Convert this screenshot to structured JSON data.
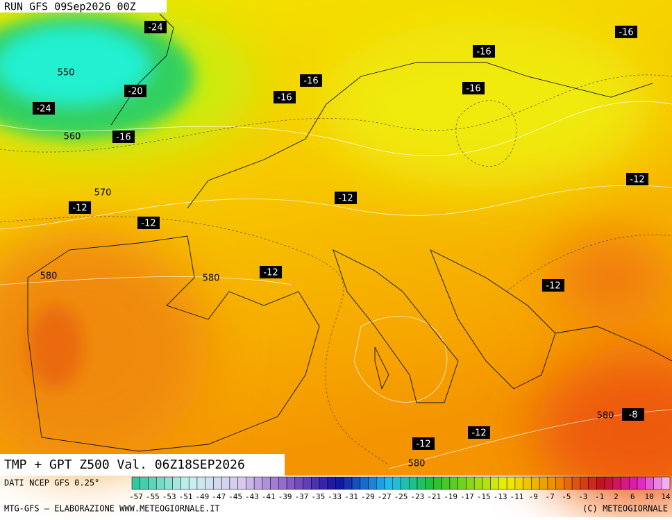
{
  "header": {
    "run": "RUN GFS 09Sep2026 00Z",
    "product": "TMP + GPT Z500 Val. 06Z18SEP2026"
  },
  "map": {
    "temperature_labels": [
      "-24",
      "-16",
      "-16",
      "-16",
      "-16",
      "-16",
      "-20",
      "-24",
      "-16",
      "-12",
      "-12",
      "-12",
      "-12",
      "-12",
      "-12",
      "-8",
      "-12",
      "-12"
    ],
    "height_labels": [
      "550",
      "560",
      "570",
      "580",
      "580",
      "580",
      "580"
    ]
  },
  "colorbar": {
    "source": "DATI NCEP GFS 0.25°",
    "labels": [
      "-57",
      "-55",
      "-53",
      "-51",
      "-49",
      "-47",
      "-45",
      "-43",
      "-41",
      "-39",
      "-37",
      "-35",
      "-33",
      "-31",
      "-29",
      "-27",
      "-25",
      "-23",
      "-21",
      "-19",
      "-17",
      "-15",
      "-13",
      "-11",
      "-9",
      "-7",
      "-5",
      "-3",
      "-1",
      "2",
      "6",
      "10",
      "14"
    ]
  },
  "footer": {
    "left": "MTG-GFS — ELABORAZIONE WWW.METEOGIORNALE.IT",
    "right": "(C) METEOGIORNALE"
  }
}
